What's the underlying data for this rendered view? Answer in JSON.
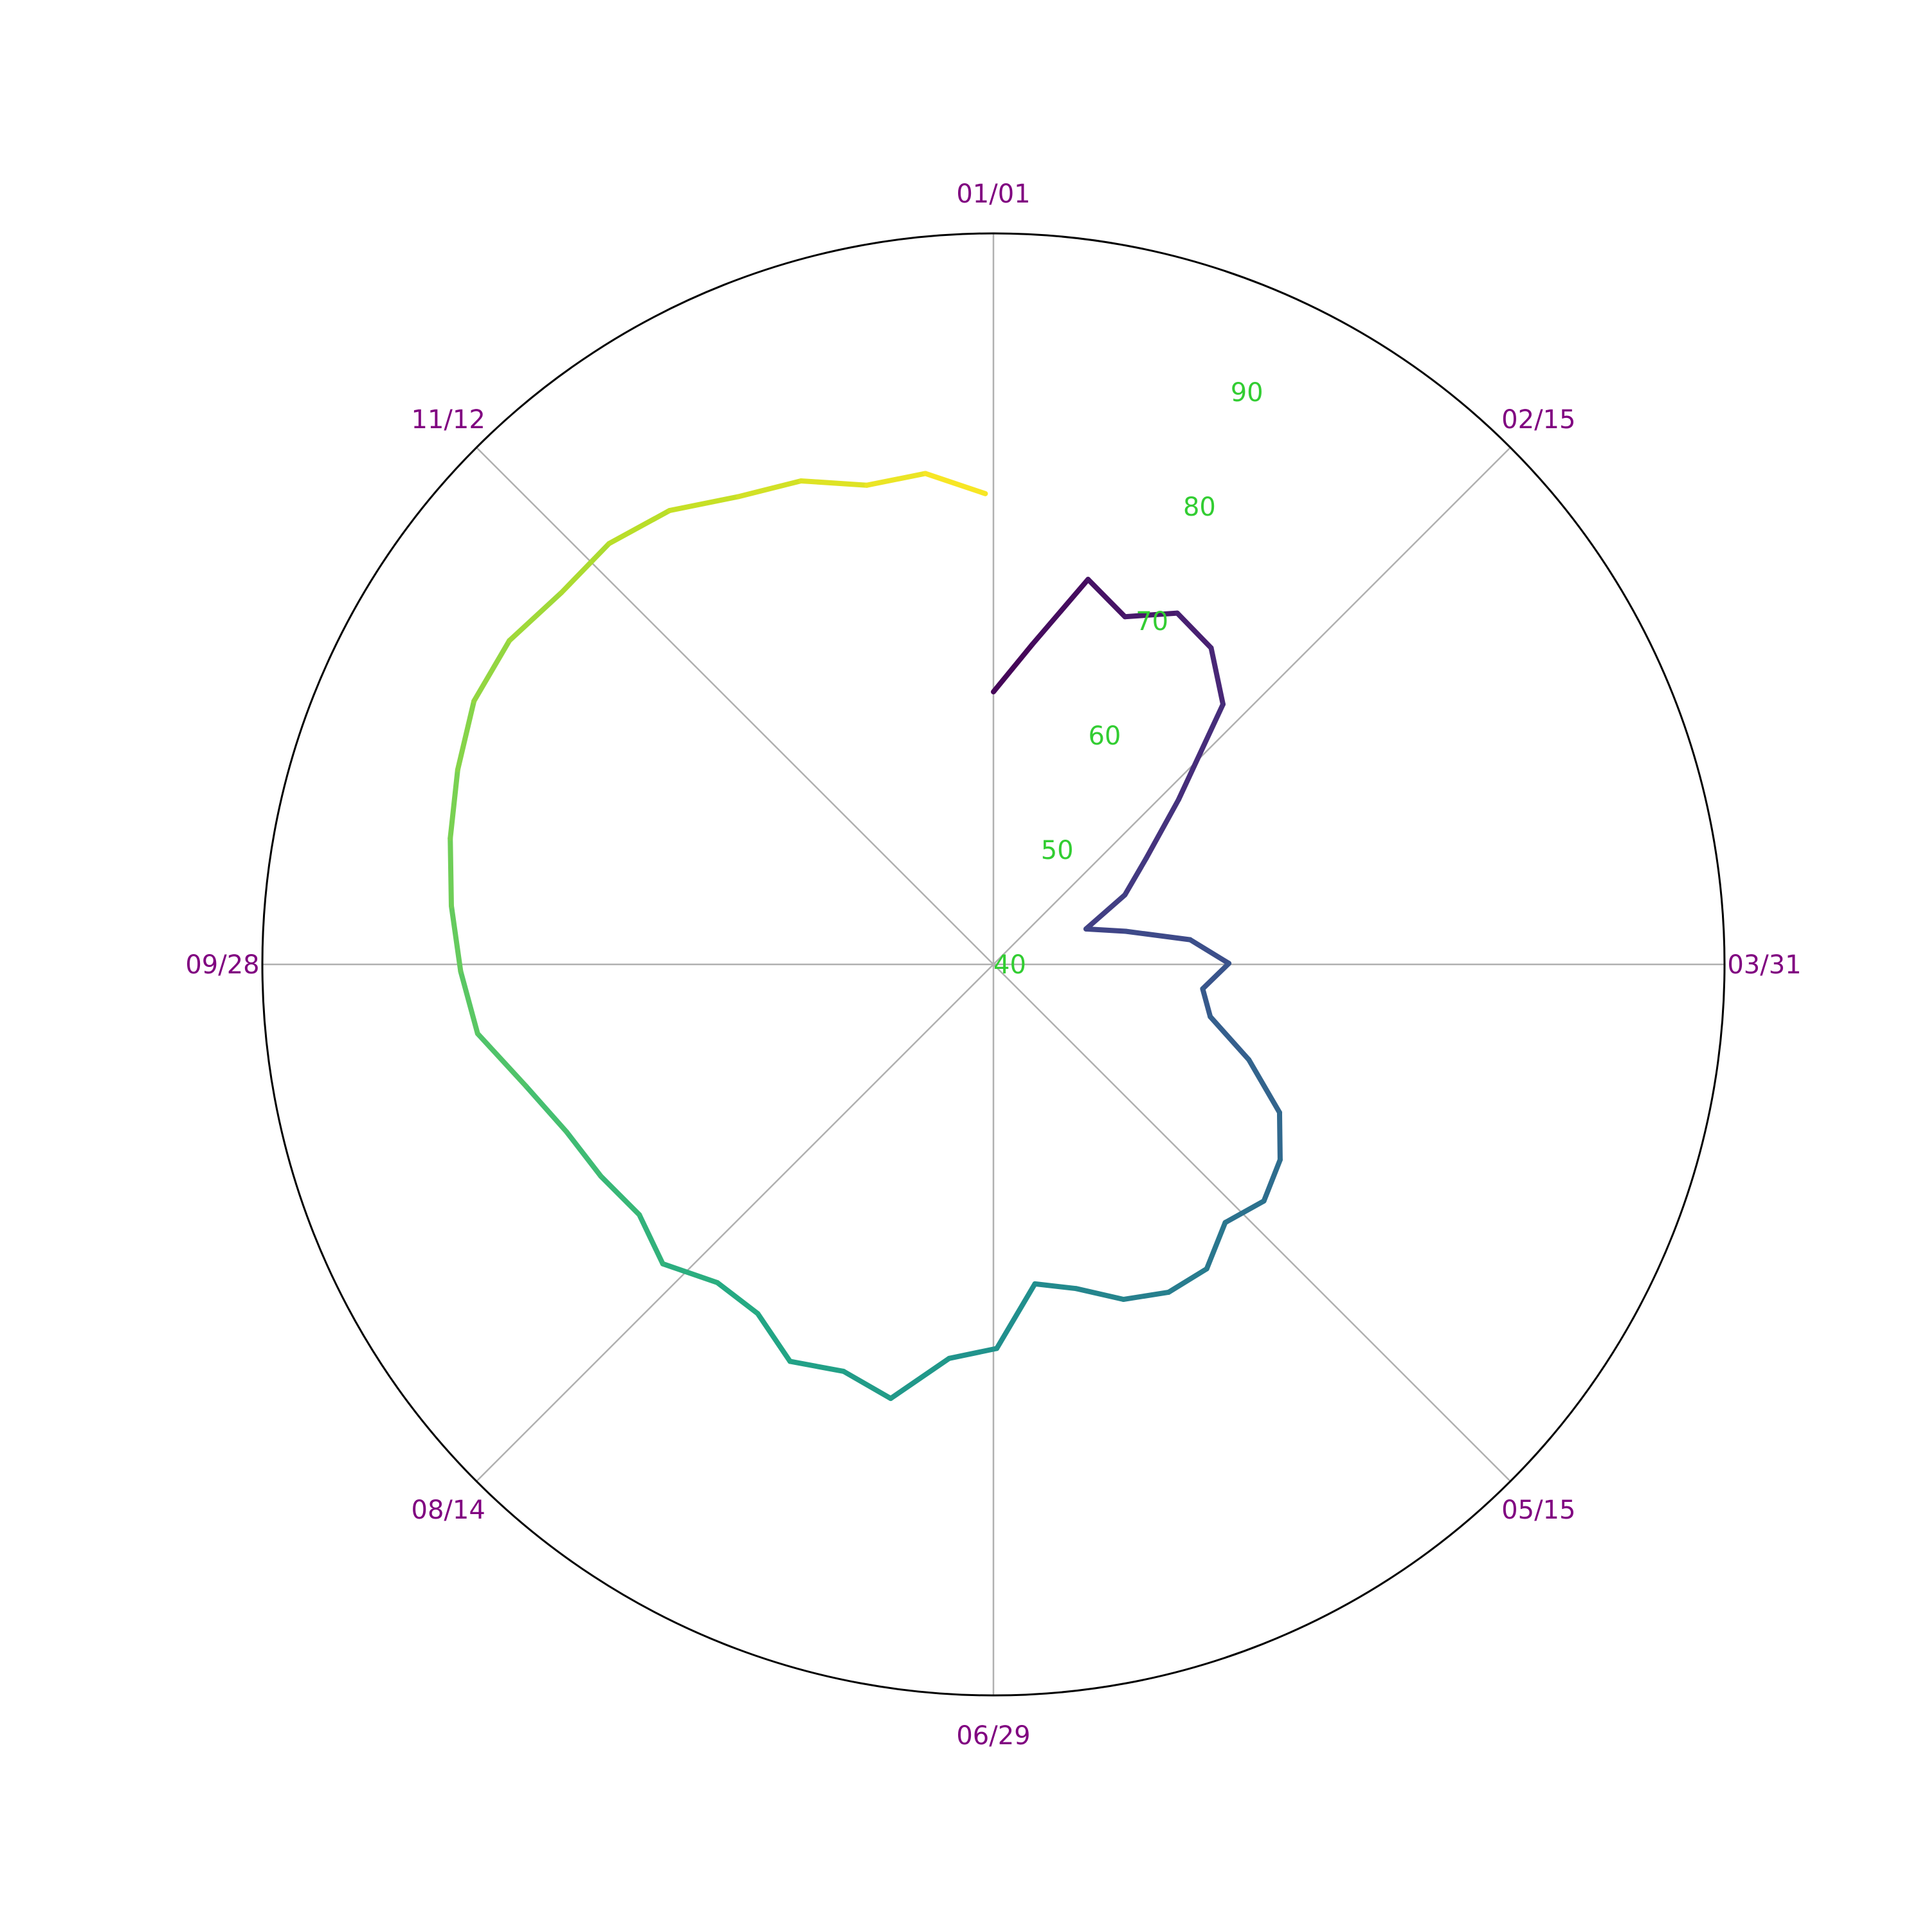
{
  "chart_data": {
    "type": "line",
    "projection": "polar",
    "title": "",
    "theta_direction": "clockwise",
    "theta_zero_location": "top",
    "angle_tick_labels": [
      "01/01",
      "02/15",
      "03/31",
      "05/15",
      "06/29",
      "08/14",
      "09/28",
      "11/12"
    ],
    "angle_tick_color": "#800080",
    "radial_tick_labels": [
      "40",
      "50",
      "60",
      "70",
      "80",
      "90"
    ],
    "radial_tick_values": [
      40,
      50,
      60,
      70,
      80,
      90
    ],
    "radial_tick_color": "#32CD32",
    "rlim": [
      40,
      99
    ],
    "grid": true,
    "line_colormap": "viridis",
    "color_by": "day_of_year",
    "series": [
      {
        "x_day_of_year": [
          1,
          8,
          15,
          22,
          29,
          36,
          43,
          50,
          57,
          64,
          71,
          78,
          85,
          92,
          99,
          106,
          113,
          120,
          127,
          134,
          141,
          148,
          155,
          162,
          169,
          176,
          183,
          190,
          197,
          204,
          211,
          218,
          225,
          232,
          239,
          246,
          253,
          260,
          267,
          274,
          281,
          288,
          295,
          302,
          309,
          316,
          323,
          330,
          337,
          344,
          351,
          358,
          365
        ],
        "y": [
          62,
          66,
          72,
          70,
          72,
          71,
          68,
          60,
          55,
          52,
          48,
          51,
          56,
          59,
          57,
          58,
          62,
          66,
          68,
          69,
          68,
          70,
          70,
          69,
          67,
          66,
          71,
          72,
          76,
          75,
          76,
          74,
          74,
          76,
          75,
          76,
          77,
          79,
          82,
          83,
          84,
          85,
          86,
          87,
          87,
          86,
          86,
          85,
          83,
          82,
          80,
          80,
          78
        ]
      }
    ]
  }
}
